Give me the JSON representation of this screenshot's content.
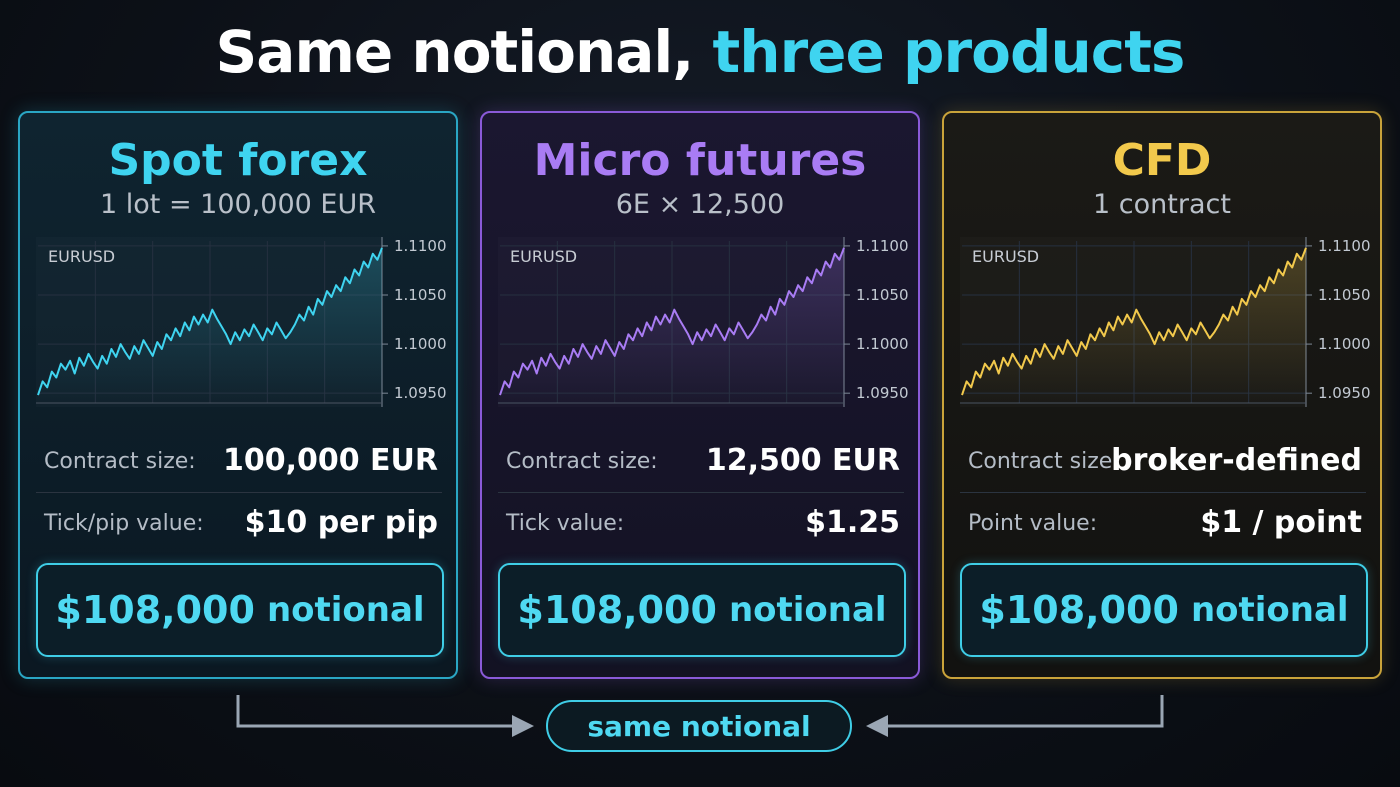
{
  "title": {
    "part1": "Same notional,",
    "part2": "three products"
  },
  "cards": [
    {
      "key": "spot",
      "title": "Spot forex",
      "subtitle": "1 lot = 100,000 EUR",
      "row1_label": "Contract size:",
      "row1_value": "100,000 EUR",
      "row2_label": "Tick/pip value:",
      "row2_value": "$10 per pip",
      "notional_amount": "$108,000",
      "notional_word": "notional",
      "accent": "#3fd4f0"
    },
    {
      "key": "micro",
      "title": "Micro futures",
      "subtitle": "6E × 12,500",
      "row1_label": "Contract size:",
      "row1_value": "12,500 EUR",
      "row2_label": "Tick value:",
      "row2_value": "$1.25",
      "notional_amount": "$108,000",
      "notional_word": "notional",
      "accent": "#a97cf4"
    },
    {
      "key": "cfd",
      "title": "CFD",
      "subtitle": "1 contract",
      "row1_label": "Contract size:",
      "row1_value": "broker-defined",
      "row2_label": "Point value:",
      "row2_value": "$1 / point",
      "notional_amount": "$108,000",
      "notional_word": "notional",
      "accent": "#f2c94c"
    }
  ],
  "footer": {
    "label": "same notional"
  },
  "chart_data": {
    "type": "line",
    "series_label": "EURUSD",
    "ylim": [
      1.094,
      1.1105
    ],
    "yticks": [
      "1.1100",
      "1.1050",
      "1.1000",
      "1.0950"
    ],
    "ytick_values": [
      1.11,
      1.105,
      1.1,
      1.095
    ],
    "grid": true,
    "values": [
      1.0948,
      1.0962,
      1.0956,
      1.0972,
      1.0966,
      1.098,
      1.0974,
      1.0983,
      1.097,
      1.0986,
      1.0978,
      1.099,
      1.0982,
      1.0975,
      1.0988,
      1.098,
      1.0995,
      1.0987,
      1.1,
      1.0992,
      1.0985,
      1.0998,
      1.099,
      1.1004,
      1.0996,
      1.0988,
      1.1002,
      1.0995,
      1.101,
      1.1004,
      1.1016,
      1.1008,
      1.1022,
      1.1014,
      1.1028,
      1.102,
      1.103,
      1.1022,
      1.1035,
      1.1026,
      1.1018,
      1.101,
      1.1,
      1.1012,
      1.1004,
      1.1015,
      1.1008,
      1.102,
      1.1012,
      1.1004,
      1.1016,
      1.101,
      1.1022,
      1.1014,
      1.1006,
      1.1012,
      1.102,
      1.103,
      1.1024,
      1.1038,
      1.103,
      1.1046,
      1.104,
      1.1054,
      1.1048,
      1.106,
      1.1054,
      1.1068,
      1.1062,
      1.1076,
      1.107,
      1.1084,
      1.1078,
      1.1092,
      1.1086,
      1.1098
    ]
  }
}
